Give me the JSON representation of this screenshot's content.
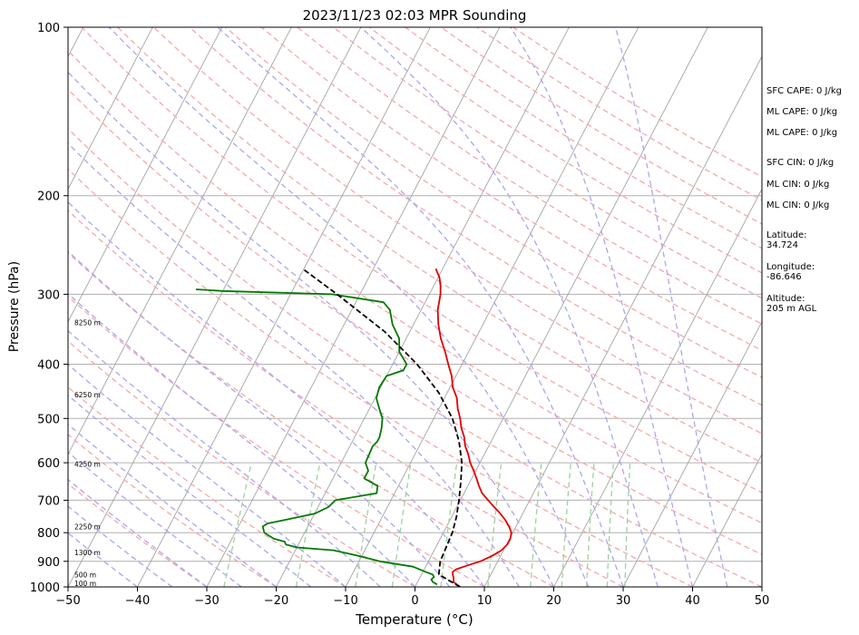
{
  "chart_data": {
    "type": "line",
    "title": "2023/11/23 02:03 MPR Sounding",
    "xlabel": "Temperature (°C)",
    "ylabel": "Pressure (hPa)",
    "xlim": [
      -50,
      50
    ],
    "ylim": [
      1000,
      100
    ],
    "y_scale": "log",
    "x_ticks": [
      -50,
      -40,
      -30,
      -20,
      -10,
      0,
      10,
      20,
      30,
      40,
      50
    ],
    "x_tick_labels": [
      "−50",
      "−40",
      "−30",
      "−20",
      "−10",
      "0",
      "10",
      "20",
      "30",
      "40",
      "50"
    ],
    "y_ticks": [
      1000,
      900,
      800,
      700,
      600,
      500,
      400,
      300,
      200,
      100
    ],
    "y_tick_labels": [
      "1000",
      "900",
      "800",
      "700",
      "600",
      "500",
      "400",
      "300",
      "200",
      "100"
    ],
    "grid": true,
    "colors": {
      "temperature": "#e00000",
      "dewpoint": "#007a00",
      "parcel": "#000000",
      "dry_adiabats": "#f4a8a8",
      "moist_adiabats": "#aaa6ee",
      "mixing_ratio": "#9fd19f",
      "isotherms": "#999999"
    },
    "series": [
      {
        "key": "temperature",
        "pressure": [
          1000,
          980,
          960,
          950,
          940,
          930,
          920,
          910,
          900,
          880,
          860,
          840,
          820,
          800,
          780,
          760,
          740,
          720,
          700,
          680,
          660,
          640,
          620,
          600,
          580,
          560,
          540,
          520,
          500,
          480,
          460,
          440,
          420,
          400,
          380,
          360,
          340,
          320,
          300,
          290,
          280,
          270
        ],
        "values": [
          6.5,
          5.2,
          4.8,
          4.5,
          4.3,
          4.6,
          5.5,
          6.5,
          7.5,
          8.8,
          9.7,
          10.1,
          10.1,
          9.8,
          9.0,
          8.0,
          6.8,
          5.4,
          4.0,
          2.6,
          1.6,
          0.7,
          -0.3,
          -1.4,
          -2.3,
          -3.4,
          -4.2,
          -5.3,
          -6.2,
          -7.3,
          -8.2,
          -9.6,
          -10.6,
          -12.0,
          -13.4,
          -15.0,
          -16.4,
          -17.6,
          -18.4,
          -19.0,
          -19.8,
          -21.0
        ]
      },
      {
        "key": "dewpoint",
        "pressure": [
          990,
          980,
          970,
          960,
          950,
          940,
          920,
          900,
          880,
          860,
          850,
          840,
          830,
          820,
          800,
          780,
          770,
          760,
          740,
          720,
          700,
          680,
          660,
          640,
          620,
          600,
          580,
          560,
          550,
          540,
          520,
          500,
          480,
          460,
          440,
          420,
          410,
          400,
          380,
          360,
          340,
          320,
          310,
          300,
          296,
          295,
          294
        ],
        "values": [
          3.0,
          2.2,
          1.8,
          2.0,
          1.6,
          0.4,
          -1.8,
          -7.0,
          -10.5,
          -14.5,
          -20.0,
          -21.8,
          -22.2,
          -24.0,
          -25.8,
          -26.5,
          -26.0,
          -24.0,
          -20.0,
          -18.5,
          -18.0,
          -12.6,
          -13.0,
          -15.5,
          -15.5,
          -16.5,
          -16.6,
          -16.7,
          -16.4,
          -16.4,
          -16.8,
          -17.4,
          -18.6,
          -19.8,
          -20.2,
          -20.0,
          -18.0,
          -18.0,
          -20.0,
          -21.0,
          -23.0,
          -24.5,
          -26.0,
          -34.0,
          -50.0,
          -52.0,
          -54.0
        ]
      },
      {
        "key": "parcel",
        "pressure": [
          1000,
          950,
          900,
          850,
          800,
          750,
          700,
          650,
          600,
          550,
          500,
          450,
          400,
          350,
          300,
          270
        ],
        "values": [
          6.5,
          2.5,
          1.7,
          1.5,
          1.3,
          0.7,
          -0.2,
          -1.3,
          -2.6,
          -4.6,
          -7.3,
          -11.2,
          -16.5,
          -23.6,
          -33.3,
          -40.2
        ]
      }
    ],
    "height_labels": [
      {
        "label": "100 m",
        "pressure": 985
      },
      {
        "label": "500 m",
        "pressure": 950
      },
      {
        "label": "1300 m",
        "pressure": 868
      },
      {
        "label": "2250 m",
        "pressure": 780
      },
      {
        "label": "4250 m",
        "pressure": 603
      },
      {
        "label": "6250 m",
        "pressure": 453
      },
      {
        "label": "8250 m",
        "pressure": 337
      }
    ],
    "annotations": [
      [
        "SFC CAPE: 0 J/kg"
      ],
      [
        "ML CAPE: 0 J/kg"
      ],
      [
        "ML CAPE: 0 J/kg"
      ],
      [
        "SFC CIN: 0 J/kg"
      ],
      [
        "ML CIN: 0 J/kg"
      ],
      [
        "ML CIN: 0 J/kg"
      ],
      [
        "Latitude:",
        "34.724"
      ],
      [
        "Longitude:",
        "-86.646"
      ],
      [
        "Altitude:",
        "205 m AGL"
      ]
    ]
  }
}
